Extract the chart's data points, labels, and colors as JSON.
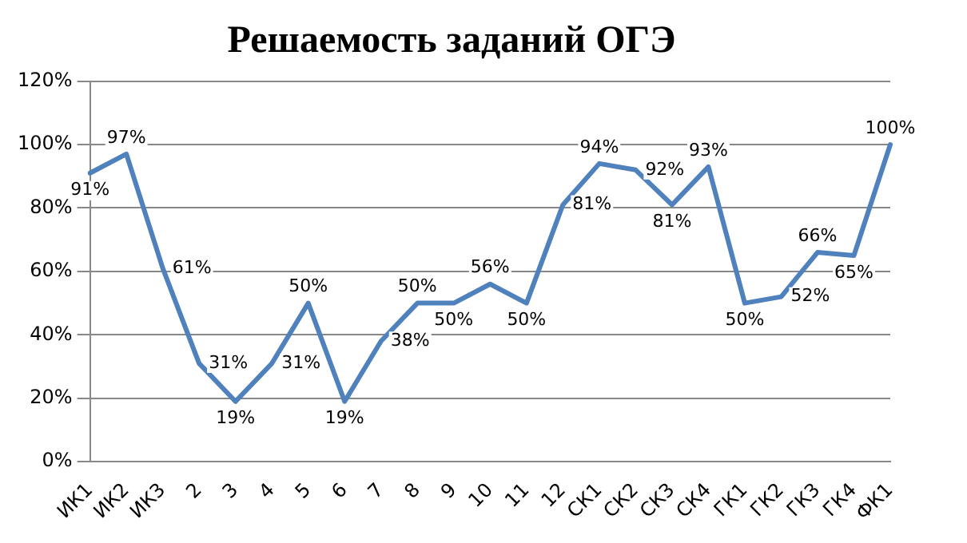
{
  "chart_data": {
    "type": "line",
    "title": "Решаемость заданий ОГЭ",
    "categories": [
      "ИК1",
      "ИК2",
      "ИК3",
      "2",
      "3",
      "4",
      "5",
      "6",
      "7",
      "8",
      "9",
      "10",
      "11",
      "12",
      "СК1",
      "СК2",
      "СК3",
      "СК4",
      "ГК1",
      "ГК2",
      "ГК3",
      "ГК4",
      "ФК1"
    ],
    "series": [
      {
        "color": "#4f81bd",
        "values": [
          91,
          97,
          61,
          31,
          19,
          31,
          50,
          19,
          38,
          50,
          50,
          56,
          50,
          81,
          94,
          92,
          81,
          93,
          50,
          52,
          66,
          65,
          100
        ],
        "value_labels": [
          "91%",
          "97%",
          "61%",
          "31%",
          "19%",
          "31%",
          "50%",
          "19%",
          "38%",
          "50%",
          "50%",
          "56%",
          "50%",
          "81%",
          "94%",
          "92%",
          "81%",
          "93%",
          "50%",
          "52%",
          "66%",
          "65%",
          "100%"
        ]
      }
    ],
    "ylim": [
      0,
      120
    ],
    "yticks": [
      {
        "value": 0,
        "label": "0%"
      },
      {
        "value": 20,
        "label": "20%"
      },
      {
        "value": 40,
        "label": "40%"
      },
      {
        "value": 60,
        "label": "60%"
      },
      {
        "value": 80,
        "label": "80%"
      },
      {
        "value": 100,
        "label": "100%"
      },
      {
        "value": 120,
        "label": "120%"
      }
    ],
    "grid": "y",
    "legend": false,
    "marker": "none",
    "line_style": "solid"
  }
}
